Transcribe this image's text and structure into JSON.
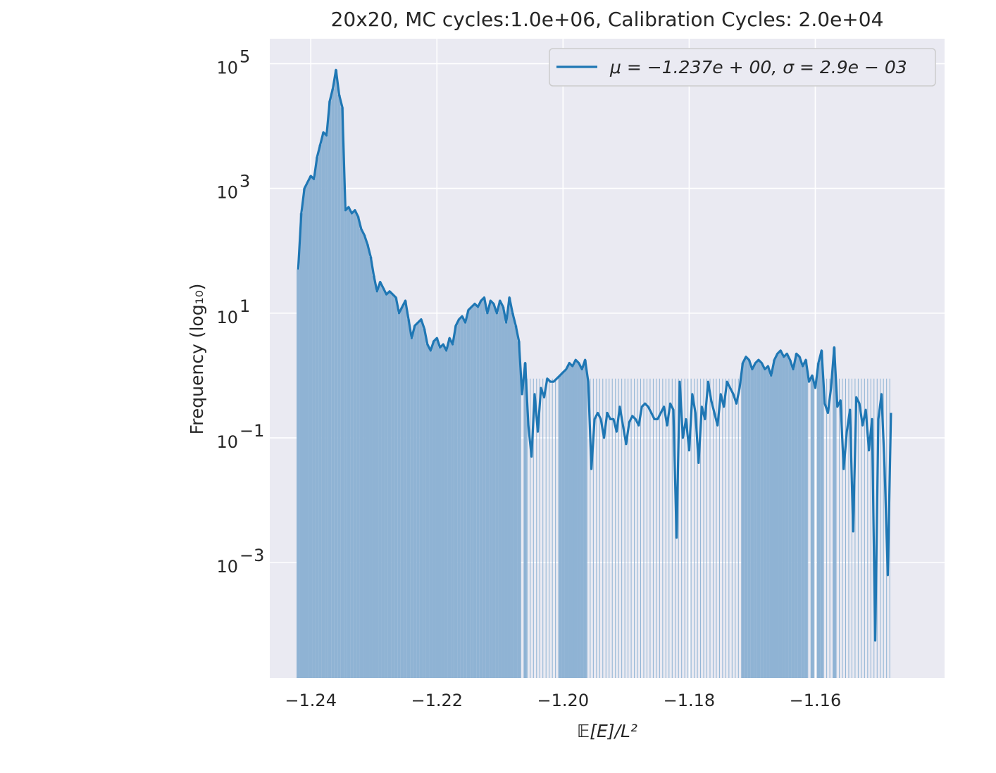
{
  "chart_data": {
    "type": "histogram",
    "title": "20x20, MC cycles:1.0e+06, Calibration Cycles: 2.0e+04",
    "xlabel": "𝔼[E]/L²",
    "ylabel": "Frequency (log₁₀)",
    "xlim": [
      -1.2465,
      -1.1395
    ],
    "ylim_log10": [
      -4.85,
      5.4
    ],
    "yscale": "log",
    "grid": true,
    "x_ticks": [
      {
        "value": -1.24,
        "label": "−1.24"
      },
      {
        "value": -1.22,
        "label": "−1.22"
      },
      {
        "value": -1.2,
        "label": "−1.20"
      },
      {
        "value": -1.18,
        "label": "−1.18"
      },
      {
        "value": -1.16,
        "label": "−1.16"
      }
    ],
    "y_ticks": [
      {
        "exp": 5,
        "base": "10",
        "sup": "5"
      },
      {
        "exp": 3,
        "base": "10",
        "sup": "3"
      },
      {
        "exp": 1,
        "base": "10",
        "sup": "1"
      },
      {
        "exp": -1,
        "base": "10",
        "sup": "−1"
      },
      {
        "exp": -3,
        "base": "10",
        "sup": "−3"
      }
    ],
    "legend": {
      "placement": "top-right",
      "entries": [
        {
          "label": "μ = −1.237e + 00, σ = 2.9e − 03",
          "color": "#1f77b4"
        }
      ]
    },
    "colors": {
      "line": "#1f77b4",
      "bars": "#8fb3d4",
      "plot_bg": "#eaeaf2",
      "grid": "#ffffff"
    },
    "series": [
      {
        "name": "μ = −1.237e + 00, σ = 2.9e − 03",
        "x": [
          -1.242,
          -1.2415,
          -1.241,
          -1.2405,
          -1.24,
          -1.2395,
          -1.239,
          -1.2385,
          -1.238,
          -1.2375,
          -1.237,
          -1.2365,
          -1.236,
          -1.2355,
          -1.235,
          -1.2345,
          -1.234,
          -1.2335,
          -1.233,
          -1.2325,
          -1.232,
          -1.2315,
          -1.231,
          -1.2305,
          -1.23,
          -1.2295,
          -1.229,
          -1.2285,
          -1.228,
          -1.2275,
          -1.227,
          -1.2265,
          -1.226,
          -1.2255,
          -1.225,
          -1.2245,
          -1.224,
          -1.2235,
          -1.223,
          -1.2225,
          -1.222,
          -1.2215,
          -1.221,
          -1.2205,
          -1.22,
          -1.2195,
          -1.219,
          -1.2185,
          -1.218,
          -1.2175,
          -1.217,
          -1.2165,
          -1.216,
          -1.2155,
          -1.215,
          -1.2145,
          -1.214,
          -1.2135,
          -1.213,
          -1.2125,
          -1.212,
          -1.2115,
          -1.211,
          -1.2105,
          -1.21,
          -1.2095,
          -1.209,
          -1.2085,
          -1.208,
          -1.2075,
          -1.207,
          -1.2065,
          -1.206,
          -1.2055,
          -1.205,
          -1.2045,
          -1.204,
          -1.2035,
          -1.203,
          -1.2025,
          -1.202,
          -1.2015,
          -1.201,
          -1.2005,
          -1.2,
          -1.1995,
          -1.199,
          -1.1985,
          -1.198,
          -1.1975,
          -1.197,
          -1.1965,
          -1.196,
          -1.1955,
          -1.195,
          -1.1945,
          -1.194,
          -1.1935,
          -1.193,
          -1.1925,
          -1.192,
          -1.1915,
          -1.191,
          -1.1905,
          -1.19,
          -1.1895,
          -1.189,
          -1.1885,
          -1.188,
          -1.1875,
          -1.187,
          -1.1865,
          -1.186,
          -1.1855,
          -1.185,
          -1.1845,
          -1.184,
          -1.1835,
          -1.183,
          -1.1825,
          -1.182,
          -1.1815,
          -1.181,
          -1.1805,
          -1.18,
          -1.1795,
          -1.179,
          -1.1785,
          -1.178,
          -1.1775,
          -1.177,
          -1.1765,
          -1.176,
          -1.1755,
          -1.175,
          -1.1745,
          -1.174,
          -1.1735,
          -1.173,
          -1.1725,
          -1.172,
          -1.1715,
          -1.171,
          -1.1705,
          -1.17,
          -1.1695,
          -1.169,
          -1.1685,
          -1.168,
          -1.1675,
          -1.167,
          -1.1665,
          -1.166,
          -1.1655,
          -1.165,
          -1.1645,
          -1.164,
          -1.1635,
          -1.163,
          -1.1625,
          -1.162,
          -1.1615,
          -1.161,
          -1.1605,
          -1.16,
          -1.1595,
          -1.159,
          -1.1585,
          -1.158,
          -1.1575,
          -1.157,
          -1.1565,
          -1.156,
          -1.1555,
          -1.155,
          -1.1545,
          -1.154,
          -1.1535,
          -1.153,
          -1.1525,
          -1.152,
          -1.1515,
          -1.151,
          -1.1505,
          -1.15,
          -1.1495,
          -1.149,
          -1.1485,
          -1.148,
          -1.1475,
          -1.147,
          -1.1465,
          -1.146,
          -1.1455,
          -1.145
        ],
        "log10_y": [
          1.7,
          2.6,
          3.0,
          3.1,
          3.2,
          3.15,
          3.5,
          3.7,
          3.9,
          3.85,
          4.4,
          4.6,
          4.9,
          4.5,
          4.3,
          2.65,
          2.7,
          2.6,
          2.65,
          2.55,
          2.35,
          2.25,
          2.1,
          1.9,
          1.6,
          1.35,
          1.5,
          1.4,
          1.3,
          1.35,
          1.3,
          1.25,
          1.0,
          1.1,
          1.2,
          0.9,
          0.6,
          0.8,
          0.85,
          0.9,
          0.75,
          0.5,
          0.4,
          0.55,
          0.6,
          0.45,
          0.5,
          0.4,
          0.6,
          0.5,
          0.8,
          0.9,
          0.95,
          0.85,
          1.05,
          1.1,
          1.15,
          1.1,
          1.2,
          1.25,
          1.0,
          1.2,
          1.15,
          1.0,
          1.2,
          1.1,
          0.85,
          1.25,
          1.0,
          0.8,
          0.55,
          -0.3,
          0.2,
          -0.8,
          -1.3,
          -0.3,
          -0.9,
          -0.2,
          -0.35,
          -0.05,
          -0.1,
          -0.1,
          -0.05,
          0.0,
          0.05,
          0.1,
          0.2,
          0.15,
          0.25,
          0.2,
          0.1,
          0.25,
          -0.1,
          -1.5,
          -0.7,
          -0.6,
          -0.7,
          -1.0,
          -0.6,
          -0.7,
          -0.7,
          -0.9,
          -0.5,
          -0.8,
          -1.1,
          -0.75,
          -0.65,
          -0.7,
          -0.8,
          -0.5,
          -0.45,
          -0.5,
          -0.6,
          -0.7,
          -0.7,
          -0.6,
          -0.5,
          -0.8,
          -0.45,
          -0.55,
          -2.6,
          -0.1,
          -1.0,
          -0.7,
          -1.2,
          -0.3,
          -0.6,
          -1.4,
          -0.5,
          -0.7,
          -0.1,
          -0.4,
          -0.6,
          -0.8,
          -0.3,
          -0.5,
          -0.1,
          -0.2,
          -0.3,
          -0.45,
          -0.2,
          0.2,
          0.3,
          0.25,
          0.1,
          0.2,
          0.25,
          0.2,
          0.1,
          0.15,
          0.0,
          0.25,
          0.35,
          0.4,
          0.3,
          0.35,
          0.25,
          0.1,
          0.35,
          0.3,
          0.15,
          0.25,
          -0.1,
          0.0,
          -0.2,
          0.2,
          0.4,
          -0.45,
          -0.6,
          -0.2,
          0.45,
          -0.5,
          -0.4,
          -1.5,
          -0.9,
          -0.55,
          -2.5,
          -0.35,
          -0.45,
          -0.8,
          -0.55,
          -1.2,
          -0.7,
          -4.25,
          -0.7,
          -0.3,
          -1.5,
          -3.2,
          -0.6
        ]
      }
    ]
  }
}
